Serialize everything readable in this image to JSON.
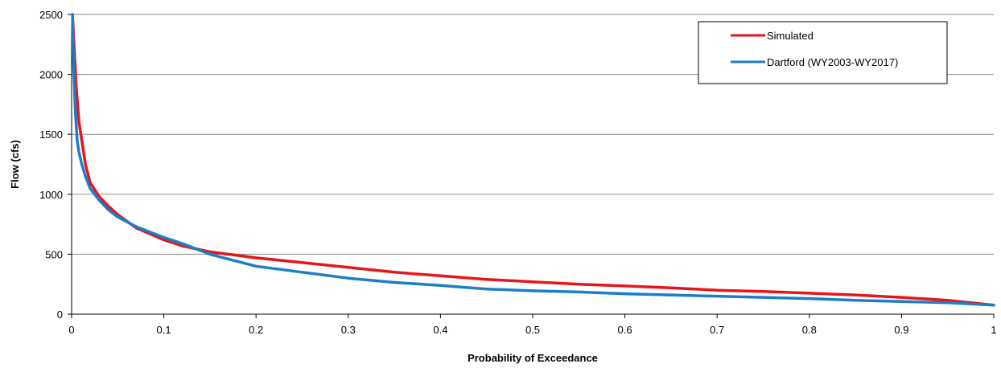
{
  "chart_data": {
    "type": "line",
    "title": "",
    "xlabel": "Probability  of Exceedance",
    "ylabel": "Flow (cfs)",
    "xlim": [
      0,
      1
    ],
    "ylim": [
      0,
      2500
    ],
    "x_ticks": [
      0,
      0.1,
      0.2,
      0.3,
      0.4,
      0.5,
      0.6,
      0.7,
      0.8,
      0.9,
      1
    ],
    "x_tick_labels": [
      "0",
      "0.1",
      "0.2",
      "0.3",
      "0.4",
      "0.5",
      "0.6",
      "0.7",
      "0.8",
      "0.9",
      "1"
    ],
    "y_ticks": [
      0,
      500,
      1000,
      1500,
      2000,
      2500
    ],
    "y_tick_labels": [
      "0",
      "500",
      "1000",
      "1500",
      "2000",
      "2500"
    ],
    "grid": "horizontal",
    "legend_position": "top-right",
    "series": [
      {
        "name": "Simulated",
        "color": "#e8141c",
        "x": [
          0.001,
          0.003,
          0.005,
          0.008,
          0.012,
          0.015,
          0.02,
          0.03,
          0.04,
          0.05,
          0.07,
          0.1,
          0.12,
          0.15,
          0.2,
          0.25,
          0.3,
          0.35,
          0.4,
          0.45,
          0.5,
          0.55,
          0.6,
          0.65,
          0.7,
          0.75,
          0.8,
          0.85,
          0.9,
          0.95,
          1.0
        ],
        "y": [
          2500,
          2200,
          1900,
          1600,
          1400,
          1250,
          1100,
          980,
          900,
          830,
          720,
          620,
          570,
          520,
          470,
          430,
          390,
          350,
          320,
          290,
          270,
          250,
          235,
          220,
          200,
          190,
          175,
          160,
          140,
          115,
          75
        ]
      },
      {
        "name": "Dartford (WY2003-WY2017)",
        "color": "#1c7ec8",
        "x": [
          0.001,
          0.002,
          0.004,
          0.006,
          0.008,
          0.011,
          0.015,
          0.02,
          0.03,
          0.04,
          0.05,
          0.07,
          0.1,
          0.12,
          0.15,
          0.2,
          0.25,
          0.3,
          0.35,
          0.4,
          0.45,
          0.5,
          0.55,
          0.6,
          0.65,
          0.7,
          0.75,
          0.8,
          0.85,
          0.9,
          0.95,
          1.0
        ],
        "y": [
          2500,
          2100,
          1700,
          1450,
          1350,
          1250,
          1150,
          1050,
          950,
          870,
          810,
          730,
          640,
          590,
          500,
          400,
          350,
          300,
          265,
          240,
          210,
          195,
          185,
          170,
          160,
          150,
          140,
          130,
          115,
          105,
          95,
          75
        ]
      }
    ]
  }
}
